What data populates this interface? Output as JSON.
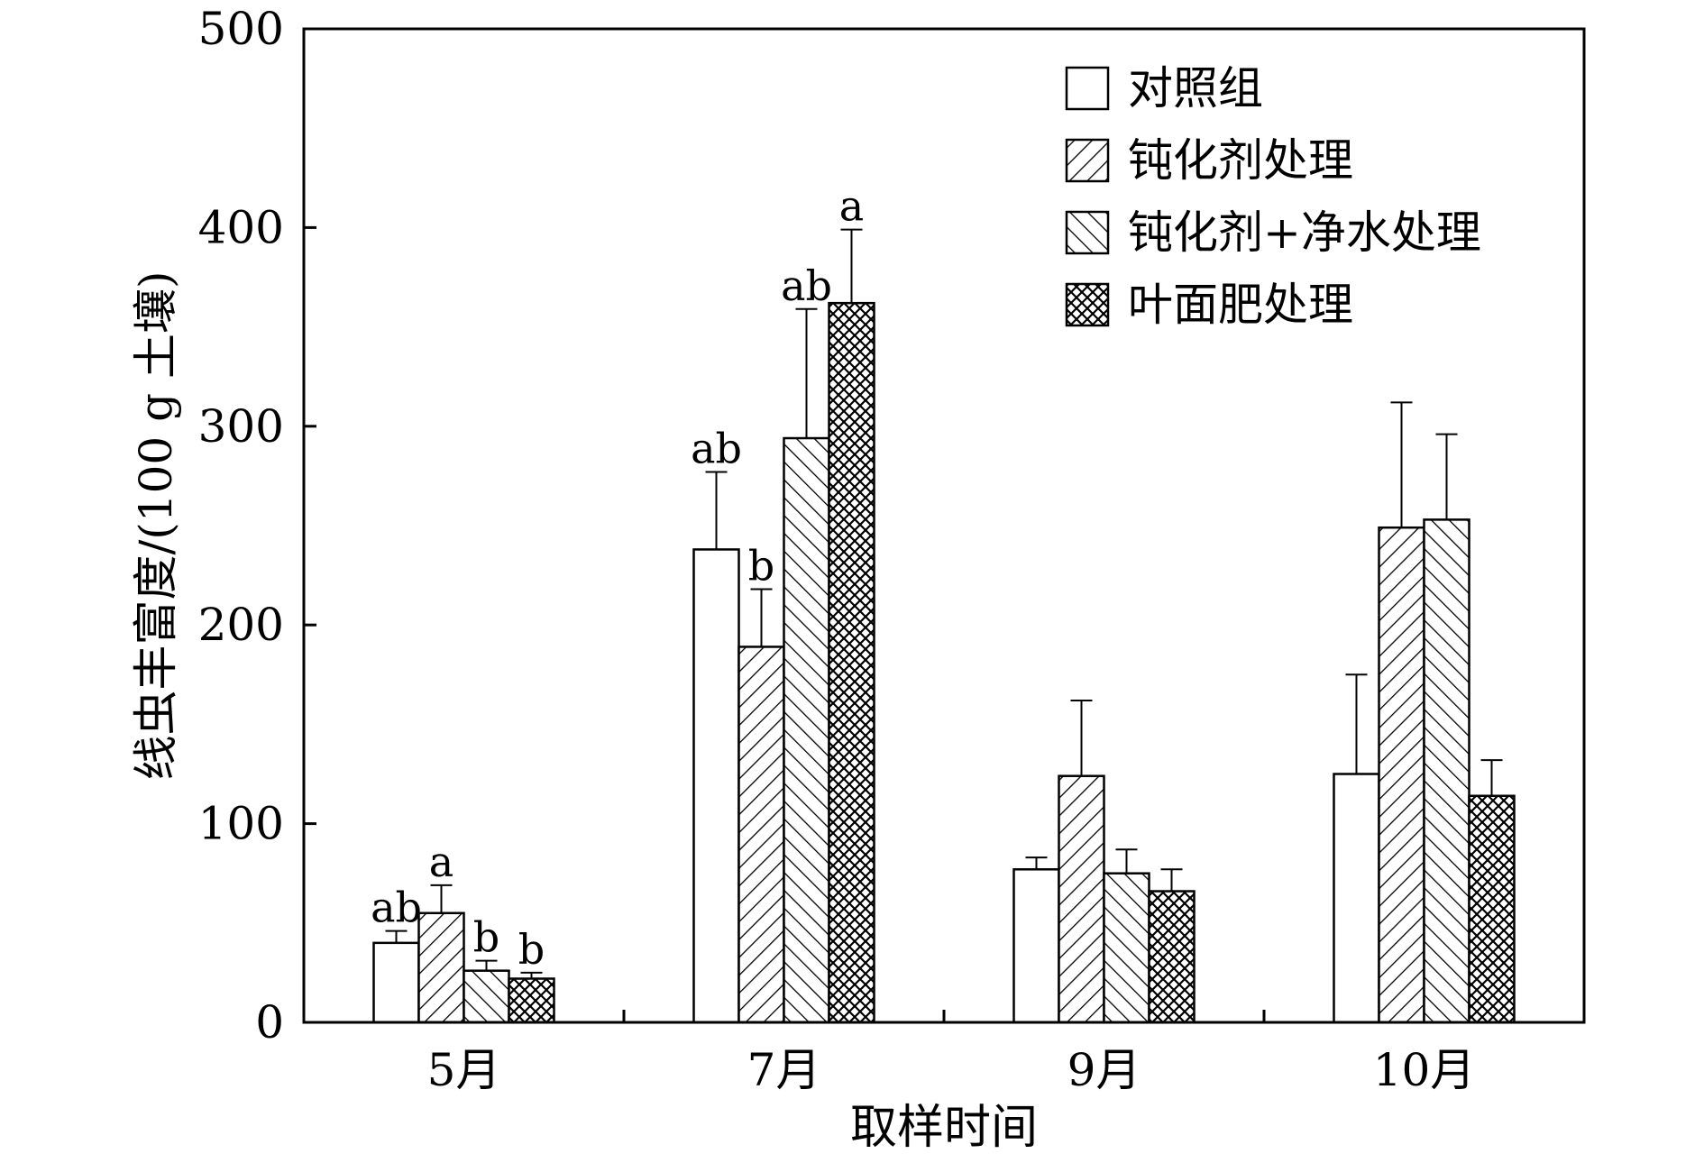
{
  "chart_data": {
    "type": "bar",
    "xlabel": "取样时间",
    "ylabel": "线虫丰富度/(100 g 土壤)",
    "ylim": [
      0,
      500
    ],
    "yticks": [
      0,
      100,
      200,
      300,
      400,
      500
    ],
    "grid": false,
    "legend_position": "top-right",
    "categories": [
      "5月",
      "7月",
      "9月",
      "10月"
    ],
    "series": [
      {
        "name": "对照组",
        "pattern": "none",
        "values": [
          40,
          238,
          77,
          125
        ],
        "errors": [
          6,
          39,
          6,
          50
        ],
        "letters": [
          "ab",
          "ab",
          "",
          ""
        ]
      },
      {
        "name": "钝化剂处理",
        "pattern": "diag-right",
        "values": [
          55,
          189,
          124,
          249
        ],
        "errors": [
          14,
          29,
          38,
          63
        ],
        "letters": [
          "a",
          "b",
          "",
          ""
        ]
      },
      {
        "name": "钝化剂+净水处理",
        "pattern": "diag-left",
        "values": [
          26,
          294,
          75,
          253
        ],
        "errors": [
          5,
          65,
          12,
          43
        ],
        "letters": [
          "b",
          "ab",
          "",
          ""
        ]
      },
      {
        "name": "叶面肥处理",
        "pattern": "cross",
        "values": [
          22,
          362,
          66,
          114
        ],
        "errors": [
          3,
          37,
          11,
          18
        ],
        "letters": [
          "b",
          "a",
          "",
          ""
        ]
      }
    ]
  }
}
